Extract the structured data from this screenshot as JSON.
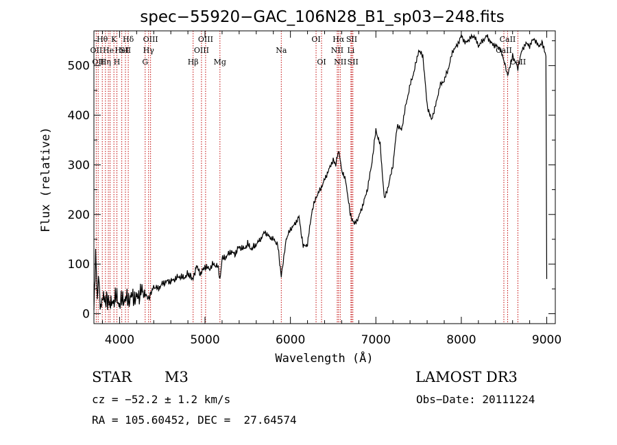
{
  "chart_data": {
    "type": "line",
    "title": "spec−55920−GAC_106N28_B1_sp03−248.fits",
    "xlabel": "Wavelength (Å)",
    "ylabel": "Flux (relative)",
    "xlim": [
      3700,
      9100
    ],
    "ylim": [
      -20,
      570
    ],
    "xticks": [
      4000,
      5000,
      6000,
      7000,
      8000,
      9000
    ],
    "yticks": [
      0,
      100,
      200,
      300,
      400,
      500
    ],
    "grid": false,
    "series": [
      {
        "name": "spectrum",
        "color": "#000000",
        "x": [
          3700,
          3720,
          3740,
          3760,
          3780,
          3800,
          3830,
          3860,
          3900,
          3950,
          4000,
          4050,
          4100,
          4150,
          4200,
          4250,
          4300,
          4340,
          4400,
          4450,
          4500,
          4550,
          4600,
          4650,
          4700,
          4750,
          4800,
          4861,
          4900,
          4950,
          5000,
          5050,
          5100,
          5150,
          5175,
          5200,
          5250,
          5300,
          5350,
          5400,
          5450,
          5500,
          5550,
          5600,
          5650,
          5700,
          5750,
          5800,
          5850,
          5893,
          5950,
          6000,
          6050,
          6100,
          6150,
          6200,
          6250,
          6300,
          6350,
          6400,
          6450,
          6500,
          6530,
          6563,
          6600,
          6650,
          6700,
          6750,
          6800,
          6850,
          6900,
          6950,
          7000,
          7050,
          7100,
          7150,
          7200,
          7250,
          7300,
          7350,
          7400,
          7450,
          7500,
          7550,
          7600,
          7650,
          7700,
          7750,
          7800,
          7850,
          7900,
          7950,
          8000,
          8050,
          8100,
          8150,
          8200,
          8250,
          8300,
          8350,
          8400,
          8450,
          8500,
          8542,
          8600,
          8662,
          8700,
          8750,
          8800,
          8850,
          8900,
          8950,
          8990,
          9000
        ],
        "y": [
          20,
          120,
          30,
          70,
          10,
          40,
          25,
          30,
          15,
          35,
          20,
          30,
          28,
          35,
          30,
          45,
          40,
          30,
          55,
          50,
          60,
          65,
          65,
          70,
          75,
          72,
          80,
          70,
          95,
          80,
          95,
          90,
          100,
          95,
          70,
          110,
          115,
          125,
          120,
          135,
          130,
          140,
          130,
          140,
          150,
          165,
          155,
          150,
          140,
          75,
          150,
          170,
          180,
          195,
          135,
          140,
          205,
          235,
          250,
          270,
          290,
          310,
          300,
          330,
          290,
          265,
          200,
          180,
          195,
          220,
          250,
          300,
          370,
          340,
          230,
          260,
          300,
          380,
          370,
          420,
          460,
          490,
          530,
          520,
          420,
          390,
          420,
          460,
          470,
          495,
          530,
          540,
          560,
          545,
          555,
          560,
          540,
          550,
          560,
          545,
          540,
          535,
          510,
          480,
          520,
          495,
          525,
          545,
          540,
          555,
          540,
          545,
          520,
          70
        ]
      }
    ],
    "lines": [
      {
        "x": 3727,
        "label": "OII",
        "row": 2
      },
      {
        "x": 3750,
        "label": "OII",
        "row": 3
      },
      {
        "x": 3798,
        "label": "Hθ",
        "row": 1
      },
      {
        "x": 3835,
        "label": "Hη",
        "row": 3
      },
      {
        "x": 3869,
        "label": "He",
        "row": 2
      },
      {
        "x": 3889,
        "label": "",
        "row": 0
      },
      {
        "x": 3934,
        "label": "K",
        "row": 1
      },
      {
        "x": 3969,
        "label": "H",
        "row": 3
      },
      {
        "x": 4026,
        "label": "HeI",
        "row": 2
      },
      {
        "x": 4069,
        "label": "SII",
        "row": 2
      },
      {
        "x": 4102,
        "label": "Hδ",
        "row": 1
      },
      {
        "x": 4300,
        "label": "G",
        "row": 3
      },
      {
        "x": 4340,
        "label": "Hγ",
        "row": 2
      },
      {
        "x": 4363,
        "label": "OIII",
        "row": 1
      },
      {
        "x": 4861,
        "label": "Hβ",
        "row": 3
      },
      {
        "x": 4959,
        "label": "OIII",
        "row": 2
      },
      {
        "x": 5007,
        "label": "OIII",
        "row": 1
      },
      {
        "x": 5175,
        "label": "Mg",
        "row": 3
      },
      {
        "x": 5893,
        "label": "Na",
        "row": 2
      },
      {
        "x": 6300,
        "label": "OI",
        "row": 1
      },
      {
        "x": 6364,
        "label": "OI",
        "row": 3
      },
      {
        "x": 6548,
        "label": "NII",
        "row": 2
      },
      {
        "x": 6563,
        "label": "Hα",
        "row": 1
      },
      {
        "x": 6583,
        "label": "NII",
        "row": 3
      },
      {
        "x": 6708,
        "label": "Li",
        "row": 2
      },
      {
        "x": 6717,
        "label": "SII",
        "row": 1
      },
      {
        "x": 6731,
        "label": "SII",
        "row": 3
      },
      {
        "x": 8498,
        "label": "CaII",
        "row": 2
      },
      {
        "x": 8542,
        "label": "CaII",
        "row": 1
      },
      {
        "x": 8662,
        "label": "CaII",
        "row": 3
      }
    ]
  },
  "info": {
    "object_class": "STAR",
    "subclass": "M3",
    "survey": "LAMOST DR3",
    "cz": "cz = −52.2 ± 1.2 km/s",
    "obs_date": "Obs−Date: 20111224",
    "radec": "RA = 105.60452, DEC =  27.64574"
  }
}
